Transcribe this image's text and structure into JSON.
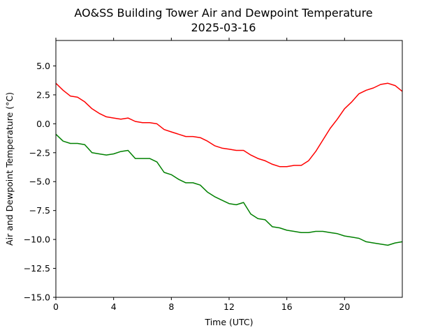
{
  "chart_data": {
    "type": "line",
    "title": "AO&SS Building Tower Air and Dewpoint Temperature",
    "subtitle": "2025-03-16",
    "xlabel": "Time (UTC)",
    "ylabel": "Air and Dewpoint Temperature (°C)",
    "xlim": [
      0,
      24
    ],
    "ylim": [
      -15,
      7.2
    ],
    "xticks": [
      0,
      4,
      8,
      12,
      16,
      20
    ],
    "yticks": [
      -15.0,
      -12.5,
      -10.0,
      -7.5,
      -5.0,
      -2.5,
      0.0,
      2.5,
      5.0
    ],
    "ytick_labels": [
      "−15.0",
      "−12.5",
      "−10.0",
      "−7.5",
      "−5.0",
      "−2.5",
      "0.0",
      "2.5",
      "5.0"
    ],
    "grid": false,
    "series": [
      {
        "color": "#ff0000",
        "x": [
          0,
          0.5,
          1,
          1.5,
          2,
          2.5,
          3,
          3.5,
          4,
          4.5,
          5,
          5.5,
          6,
          6.5,
          7,
          7.5,
          8,
          8.5,
          9,
          9.5,
          10,
          10.5,
          11,
          11.5,
          12,
          12.5,
          13,
          13.5,
          14,
          14.5,
          15,
          15.5,
          16,
          16.5,
          17,
          17.5,
          18,
          18.5,
          19,
          19.5,
          20,
          20.5,
          21,
          21.5,
          22,
          22.5,
          23,
          23.5,
          24
        ],
        "values": [
          3.5,
          2.9,
          2.4,
          2.3,
          1.9,
          1.3,
          0.9,
          0.6,
          0.5,
          0.4,
          0.5,
          0.2,
          0.1,
          0.1,
          0.0,
          -0.5,
          -0.7,
          -0.9,
          -1.1,
          -1.1,
          -1.2,
          -1.5,
          -1.9,
          -2.1,
          -2.2,
          -2.3,
          -2.3,
          -2.7,
          -3.0,
          -3.2,
          -3.5,
          -3.7,
          -3.7,
          -3.6,
          -3.6,
          -3.2,
          -2.4,
          -1.4,
          -0.4,
          0.4,
          1.3,
          1.9,
          2.6,
          2.9,
          3.1,
          3.4,
          3.5,
          3.3,
          2.8
        ]
      },
      {
        "color": "#008000",
        "x": [
          0,
          0.5,
          1,
          1.5,
          2,
          2.5,
          3,
          3.5,
          4,
          4.5,
          5,
          5.5,
          6,
          6.5,
          7,
          7.5,
          8,
          8.5,
          9,
          9.5,
          10,
          10.5,
          11,
          11.5,
          12,
          12.5,
          13,
          13.5,
          14,
          14.5,
          15,
          15.5,
          16,
          16.5,
          17,
          17.5,
          18,
          18.5,
          19,
          19.5,
          20,
          20.5,
          21,
          21.5,
          22,
          22.5,
          23,
          23.5,
          24
        ],
        "values": [
          -0.9,
          -1.5,
          -1.7,
          -1.7,
          -1.8,
          -2.5,
          -2.6,
          -2.7,
          -2.6,
          -2.4,
          -2.3,
          -3.0,
          -3.0,
          -3.0,
          -3.3,
          -4.2,
          -4.4,
          -4.8,
          -5.1,
          -5.1,
          -5.3,
          -5.9,
          -6.3,
          -6.6,
          -6.9,
          -7.0,
          -6.8,
          -7.8,
          -8.2,
          -8.3,
          -8.9,
          -9.0,
          -9.2,
          -9.3,
          -9.4,
          -9.4,
          -9.3,
          -9.3,
          -9.4,
          -9.5,
          -9.7,
          -9.8,
          -9.9,
          -10.2,
          -10.3,
          -10.4,
          -10.5,
          -10.3,
          -10.2
        ]
      }
    ]
  }
}
